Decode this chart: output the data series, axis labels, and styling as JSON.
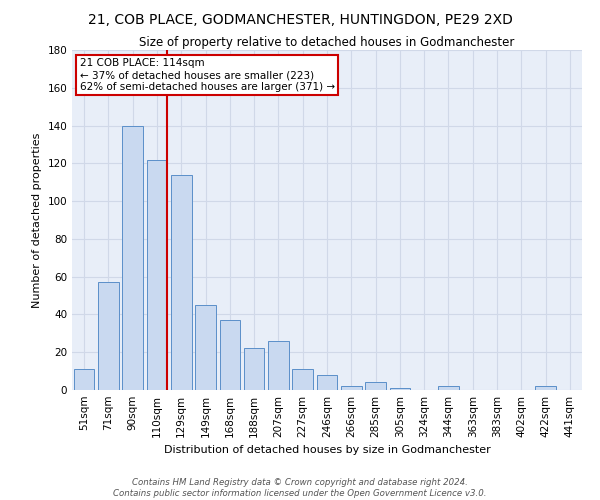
{
  "title": "21, COB PLACE, GODMANCHESTER, HUNTINGDON, PE29 2XD",
  "subtitle": "Size of property relative to detached houses in Godmanchester",
  "xlabel": "Distribution of detached houses by size in Godmanchester",
  "ylabel": "Number of detached properties",
  "categories": [
    "51sqm",
    "71sqm",
    "90sqm",
    "110sqm",
    "129sqm",
    "149sqm",
    "168sqm",
    "188sqm",
    "207sqm",
    "227sqm",
    "246sqm",
    "266sqm",
    "285sqm",
    "305sqm",
    "324sqm",
    "344sqm",
    "363sqm",
    "383sqm",
    "402sqm",
    "422sqm",
    "441sqm"
  ],
  "values": [
    11,
    57,
    140,
    122,
    114,
    45,
    37,
    22,
    26,
    11,
    8,
    2,
    4,
    1,
    0,
    2,
    0,
    0,
    0,
    2,
    0
  ],
  "bar_color": "#c9d9f0",
  "bar_edge_color": "#5b8fc9",
  "grid_color": "#d0d8e8",
  "bg_color": "#e8eef8",
  "vline_color": "#cc0000",
  "annotation_title": "21 COB PLACE: 114sqm",
  "annotation_line1": "← 37% of detached houses are smaller (223)",
  "annotation_line2": "62% of semi-detached houses are larger (371) →",
  "annotation_box_color": "#cc0000",
  "footer_line1": "Contains HM Land Registry data © Crown copyright and database right 2024.",
  "footer_line2": "Contains public sector information licensed under the Open Government Licence v3.0.",
  "ylim": [
    0,
    180
  ],
  "yticks": [
    0,
    20,
    40,
    60,
    80,
    100,
    120,
    140,
    160,
    180
  ],
  "title_fontsize": 10,
  "subtitle_fontsize": 8.5,
  "xlabel_fontsize": 8,
  "ylabel_fontsize": 8,
  "tick_fontsize": 7.5,
  "footer_fontsize": 6.2,
  "ann_fontsize": 7.5,
  "vline_bar_index": 3
}
